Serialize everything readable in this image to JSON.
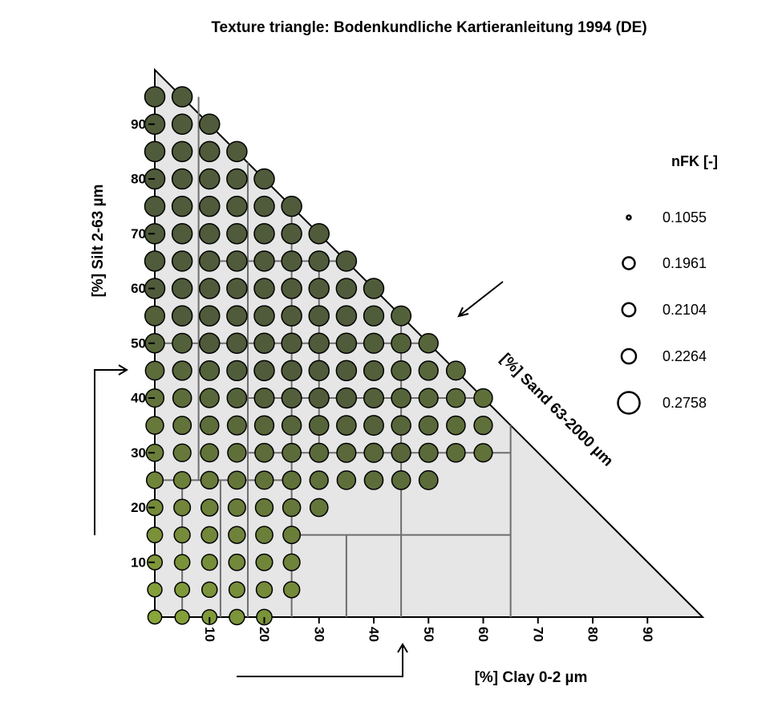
{
  "chart_data": {
    "type": "scatter",
    "subtype": "soil-texture-triangle",
    "title": "Texture triangle: Bodenkundliche Kartieranleitung 1994 (DE)",
    "axes": {
      "clay": {
        "label": "[%] Clay 0-2 µm",
        "ticks": [
          "10",
          "20",
          "30",
          "40",
          "50",
          "60",
          "70",
          "80",
          "90"
        ]
      },
      "silt": {
        "label": "[%] Silt 2-63 µm",
        "ticks": [
          "10",
          "20",
          "30",
          "40",
          "50",
          "60",
          "70",
          "80",
          "90"
        ]
      },
      "sand": {
        "label": "[%] Sand 63-2000 µm"
      },
      "range": [
        0,
        100
      ],
      "grid": false
    },
    "legend": {
      "title": "nFK [-]",
      "placement": "right",
      "entries": [
        "0.1055",
        "0.1961",
        "0.2104",
        "0.2264",
        "0.2758"
      ]
    },
    "colors": {
      "low": "#bdd43e",
      "mid": "#8aa63a",
      "high": "#4f5b3a",
      "background": "#e6e6e6",
      "class_lines": "#6e6e6e"
    },
    "points_silt_range_by_clay": [
      {
        "clay": 0,
        "silt": [
          0,
          95
        ]
      },
      {
        "clay": 5,
        "silt": [
          0,
          95
        ]
      },
      {
        "clay": 10,
        "silt": [
          0,
          90
        ]
      },
      {
        "clay": 15,
        "silt": [
          0,
          85
        ]
      },
      {
        "clay": 20,
        "silt": [
          0,
          80
        ]
      },
      {
        "clay": 25,
        "silt": [
          5,
          75
        ]
      },
      {
        "clay": 30,
        "silt": [
          20,
          70
        ]
      },
      {
        "clay": 35,
        "silt": [
          25,
          65
        ]
      },
      {
        "clay": 40,
        "silt": [
          25,
          60
        ]
      },
      {
        "clay": 45,
        "silt": [
          25,
          55
        ]
      },
      {
        "clay": 50,
        "silt": [
          25,
          50
        ]
      },
      {
        "clay": 55,
        "silt": [
          30,
          45
        ]
      },
      {
        "clay": 60,
        "silt": [
          30,
          40
        ]
      }
    ]
  }
}
